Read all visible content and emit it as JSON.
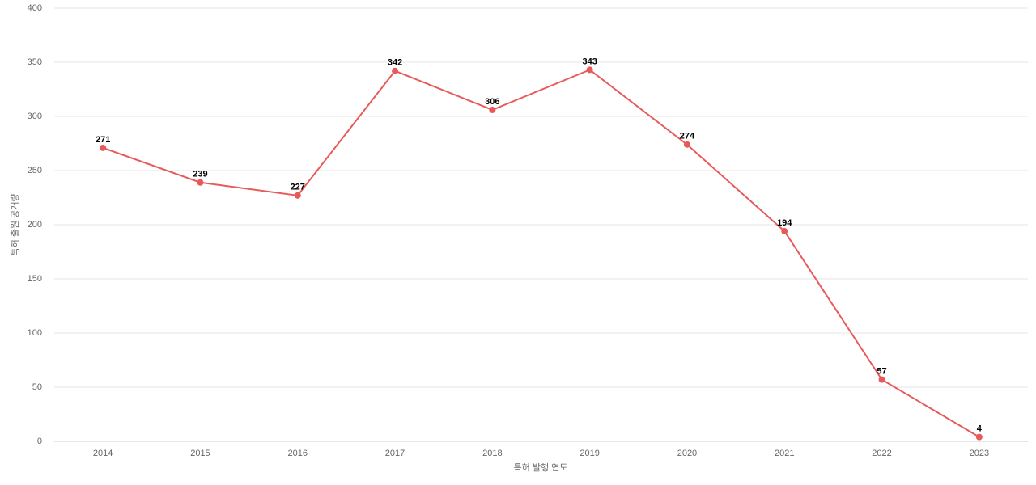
{
  "chart_data": {
    "type": "line",
    "x_label": "특허 발행 연도",
    "y_label": "특허 출원 공개량",
    "categories": [
      "2014",
      "2015",
      "2016",
      "2017",
      "2018",
      "2019",
      "2020",
      "2021",
      "2022",
      "2023"
    ],
    "values": [
      271,
      239,
      227,
      342,
      306,
      343,
      274,
      194,
      57,
      4
    ],
    "color": "#e85a5a",
    "ylim": [
      0,
      400
    ],
    "yticks": [
      0,
      50,
      100,
      150,
      200,
      250,
      300,
      350,
      400
    ],
    "grid": true
  }
}
